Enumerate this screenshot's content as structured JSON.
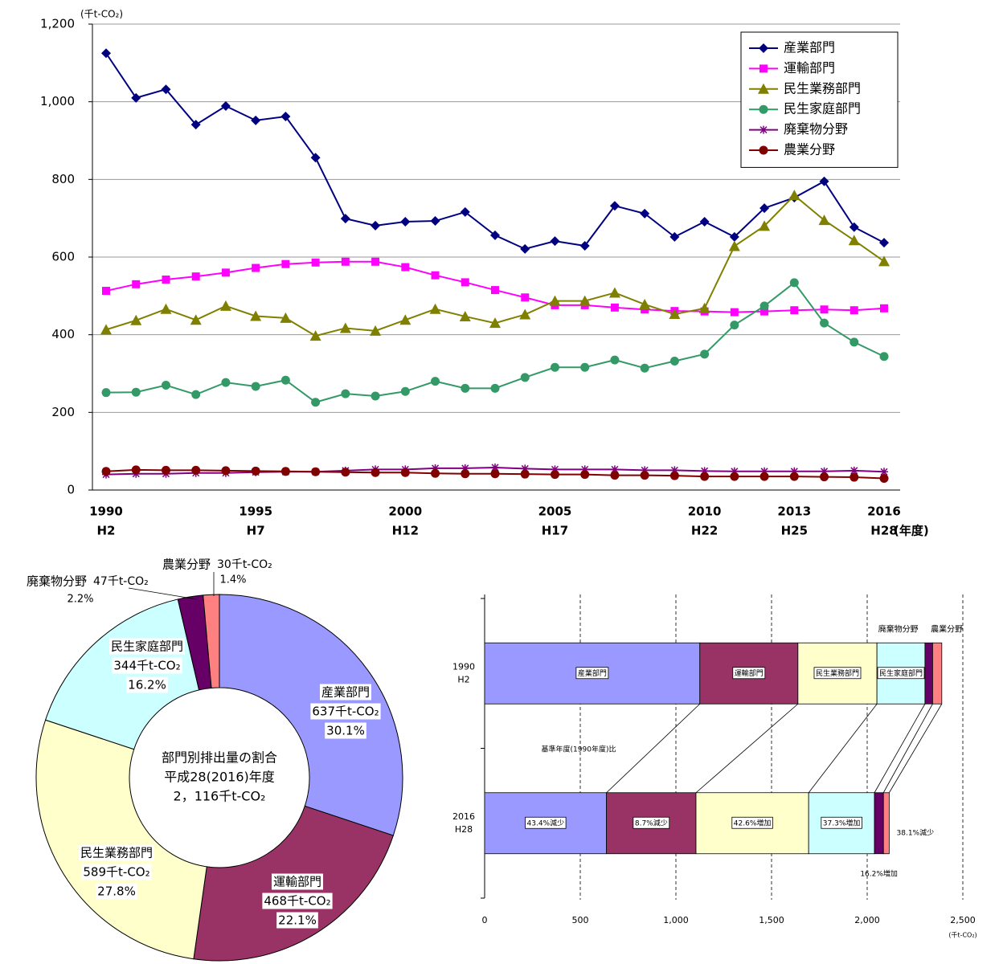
{
  "chart_data": [
    {
      "type": "line",
      "y_unit": "(千t-CO₂)",
      "x_unit": "(年度)",
      "categories": [
        "1990",
        null,
        null,
        null,
        null,
        "1995",
        null,
        null,
        null,
        null,
        "2000",
        null,
        null,
        null,
        null,
        "2005",
        null,
        null,
        null,
        null,
        "2010",
        null,
        null,
        "2013",
        null,
        null,
        "2016"
      ],
      "category_sublabels": [
        "H2",
        null,
        null,
        null,
        null,
        "H7",
        null,
        null,
        null,
        null,
        "H12",
        null,
        null,
        null,
        null,
        "H17",
        null,
        null,
        null,
        null,
        "H22",
        null,
        null,
        "H25",
        null,
        null,
        "H28"
      ],
      "ylim": [
        0,
        1200
      ],
      "yticks": [
        0,
        200,
        400,
        600,
        800,
        {
          "value": 1000,
          "label": "1,000"
        },
        {
          "value": 1200,
          "label": "1,200"
        }
      ],
      "grid": true,
      "legend": "upper right",
      "series": [
        {
          "name": "産業部門",
          "color": "#000080",
          "marker": "diamond",
          "values": [
            1125,
            1010,
            1032,
            941,
            989,
            952,
            962,
            856,
            699,
            681,
            691,
            693,
            716,
            656,
            621,
            641,
            629,
            732,
            712,
            652,
            691,
            652,
            726,
            753,
            795,
            677,
            637
          ]
        },
        {
          "name": "運輸部門",
          "color": "#ff00ff",
          "marker": "square",
          "values": [
            513,
            530,
            542,
            550,
            560,
            572,
            582,
            586,
            588,
            588,
            574,
            553,
            535,
            515,
            496,
            476,
            476,
            470,
            465,
            461,
            460,
            458,
            460,
            463,
            465,
            463,
            468
          ]
        },
        {
          "name": "民生業務部門",
          "color": "#808000",
          "marker": "triangle",
          "values": [
            413,
            437,
            466,
            438,
            474,
            448,
            443,
            397,
            417,
            410,
            438,
            466,
            447,
            430,
            452,
            487,
            487,
            508,
            478,
            453,
            468,
            628,
            680,
            759,
            695,
            643,
            589
          ]
        },
        {
          "name": "民生家庭部門",
          "color": "#339966",
          "marker": "circle",
          "values": [
            251,
            252,
            270,
            246,
            277,
            267,
            283,
            226,
            248,
            242,
            254,
            280,
            262,
            262,
            290,
            316,
            316,
            335,
            314,
            332,
            350,
            425,
            474,
            534,
            430,
            381,
            344
          ]
        },
        {
          "name": "廃棄物分野",
          "color": "#800080",
          "marker": "star",
          "values": [
            40,
            42,
            42,
            44,
            44,
            46,
            47,
            47,
            50,
            53,
            53,
            56,
            56,
            58,
            55,
            53,
            53,
            53,
            51,
            51,
            49,
            48,
            48,
            48,
            48,
            50,
            47
          ]
        },
        {
          "name": "農業分野",
          "color": "#800000",
          "marker": "circle",
          "values": [
            48,
            52,
            51,
            51,
            50,
            49,
            48,
            47,
            46,
            45,
            45,
            43,
            42,
            42,
            41,
            40,
            40,
            38,
            38,
            37,
            35,
            35,
            35,
            35,
            34,
            33,
            30
          ]
        }
      ]
    },
    {
      "type": "donut",
      "center_text": [
        "部門別排出量の割合",
        "平成28(2016)年度",
        "2，116千t-CO₂"
      ],
      "categories": [
        "産業部門",
        "運輸部門",
        "民生業務部門",
        "民生家庭部門",
        "廃棄物分野",
        "農業分野"
      ],
      "values": [
        637,
        468,
        589,
        344,
        47,
        30
      ],
      "value_labels": [
        "637千t-CO₂",
        "468千t-CO₂",
        "589千t-CO₂",
        "344千t-CO₂",
        "47千t-CO₂",
        "30千t-CO₂"
      ],
      "shares": [
        30.1,
        22.1,
        27.8,
        16.2,
        2.2,
        1.4
      ],
      "share_labels": [
        "30.1%",
        "22.1%",
        "27.8%",
        "16.2%",
        "2.2%",
        "1.4%"
      ],
      "colors": [
        "#9999ff",
        "#993366",
        "#ffffcc",
        "#ccffff",
        "#660066",
        "#ff8080"
      ]
    },
    {
      "type": "bar",
      "orientation": "horizontal",
      "stacked": true,
      "categories": [
        "1990",
        "2016"
      ],
      "category_sublabels": [
        "H2",
        "H28"
      ],
      "xlim": [
        0,
        2500
      ],
      "xticks": [
        0,
        500,
        {
          "value": 1000,
          "label": "1,000"
        },
        {
          "value": 1500,
          "label": "1,500"
        },
        {
          "value": 2000,
          "label": "2,000"
        },
        {
          "value": 2500,
          "label": "2,500"
        }
      ],
      "x_unit": "(千t-CO₂)",
      "grid": "dashed",
      "annotation": "基準年度(1990年度)比",
      "series": [
        {
          "name": "産業部門",
          "color": "#9999ff",
          "values": [
            1125,
            637
          ]
        },
        {
          "name": "運輸部門",
          "color": "#993366",
          "values": [
            513,
            468
          ]
        },
        {
          "name": "民生業務部門",
          "color": "#ffffcc",
          "values": [
            413,
            589
          ]
        },
        {
          "name": "民生家庭部門",
          "color": "#ccffff",
          "values": [
            251,
            344
          ]
        },
        {
          "name": "廃棄物分野",
          "color": "#660066",
          "values": [
            40,
            47
          ]
        },
        {
          "name": "農業分野",
          "color": "#ff8080",
          "values": [
            48,
            30
          ]
        }
      ],
      "change_labels": [
        "43.4%減少",
        "8.7%減少",
        "42.6%増加",
        "37.3%増加",
        "16.2%増加",
        "38.1%減少"
      ]
    }
  ]
}
